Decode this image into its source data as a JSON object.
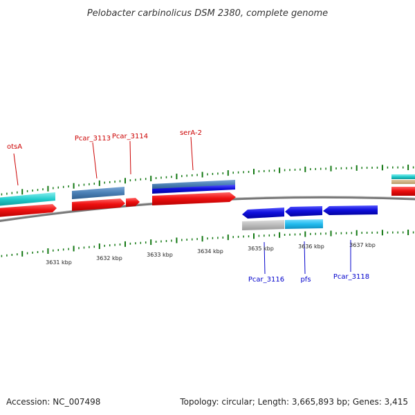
{
  "title": "Pelobacter carbinolicus DSM 2380, complete genome",
  "footer": {
    "accession": "Accession: NC_007498",
    "summary": "Topology: circular; Length: 3,665,893 bp; Genes: 3,415"
  },
  "scale_labels": [
    "3631 kbp",
    "3632 kbp",
    "3633 kbp",
    "3634 kbp",
    "3635 kbp",
    "3636 kbp",
    "3637 kbp"
  ],
  "gene_labels_top": [
    "otsA",
    "Pcar_3113",
    "Pcar_3114",
    "serA-2"
  ],
  "gene_labels_bottom": [
    "Pcar_3116",
    "pfs",
    "Pcar_3118"
  ],
  "colors": {
    "forward_cds": "#ee1111",
    "reverse_cds": "#1111dd",
    "cog_cyan": "#22cccc",
    "cog_steelblue": "#4a7fb5",
    "cog_lightblue": "#22bbee",
    "cog_gray": "#bbbbbb",
    "backbone": "#888888",
    "ticks": "#117711",
    "label_top": "#cc0000",
    "label_bottom": "#0000cc"
  }
}
